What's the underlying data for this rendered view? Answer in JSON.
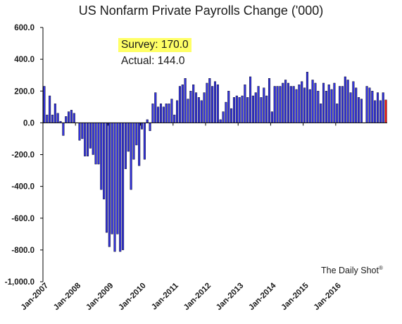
{
  "chart_data": {
    "type": "bar",
    "title": "US Nonfarm Private Payrolls Change  ('000)",
    "annotation": {
      "survey_text": "Survey: 170.0",
      "actual_text": "Actual:  144.0",
      "survey_highlight_color": "#ffff66"
    },
    "credit": "The Daily Shot",
    "credit_mark": "®",
    "ylim": [
      -1000,
      600
    ],
    "y_ticks": [
      600,
      400,
      200,
      0,
      -200,
      -400,
      -600,
      -800,
      -1000
    ],
    "y_tick_labels": [
      "600.0",
      "400.0",
      "200.0",
      "0.0",
      "-200.0",
      "-400.0",
      "-600.0",
      "-800.0",
      "-1,000.0"
    ],
    "x_tick_labels": [
      "Jan-2007",
      "Jan-2008",
      "Jan-2009",
      "Jan-2010",
      "Jan-2011",
      "Jan-2012",
      "Jan-2013",
      "Jan-2014",
      "Jan-2015",
      "Jan-2016"
    ],
    "x_tick_every": 12,
    "start": "Jan-2007",
    "frequency": "monthly",
    "colors": {
      "bars": "#3333dd",
      "last_bar": "#ee1111",
      "bar_edge": "#000000"
    },
    "values": [
      230,
      50,
      170,
      50,
      120,
      60,
      10,
      -80,
      40,
      70,
      80,
      60,
      0,
      -110,
      -100,
      -210,
      -210,
      -160,
      -200,
      -260,
      -260,
      -420,
      -480,
      -690,
      -780,
      -700,
      -810,
      -700,
      -810,
      -800,
      -290,
      -180,
      -420,
      -230,
      -140,
      -270,
      -40,
      -230,
      20,
      -50,
      120,
      190,
      100,
      120,
      100,
      120,
      120,
      150,
      50,
      140,
      230,
      240,
      280,
      150,
      200,
      240,
      190,
      160,
      140,
      190,
      250,
      280,
      230,
      260,
      240,
      20,
      70,
      130,
      200,
      90,
      160,
      170,
      160,
      170,
      240,
      160,
      290,
      170,
      190,
      230,
      160,
      220,
      170,
      280,
      70,
      230,
      230,
      230,
      250,
      270,
      250,
      230,
      230,
      210,
      240,
      260,
      220,
      320,
      210,
      270,
      250,
      200,
      120,
      250,
      200,
      240,
      210,
      250,
      120,
      230,
      230,
      290,
      270,
      190,
      260,
      220,
      160,
      150,
      0,
      230,
      220,
      200,
      140,
      190,
      140,
      190,
      144
    ]
  }
}
